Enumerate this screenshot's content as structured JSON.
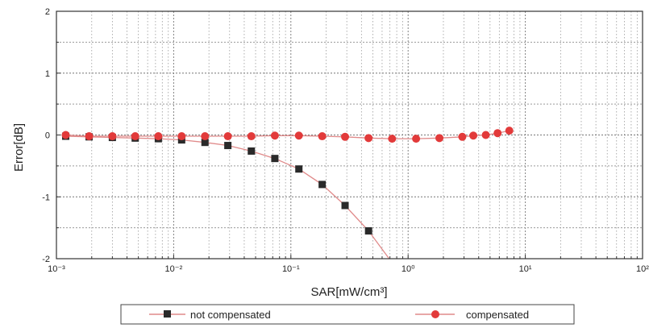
{
  "chart_data": {
    "type": "line",
    "xlabel": "SAR[mW/cm³]",
    "ylabel": "Error[dB]",
    "x_scale": "log",
    "xlim": [
      0.001,
      100
    ],
    "ylim": [
      -2,
      2
    ],
    "x_ticks": [
      0.001,
      0.01,
      0.1,
      1,
      10,
      100
    ],
    "x_tick_labels": [
      "10⁻³",
      "10⁻²",
      "10⁻¹",
      "10⁰",
      "10¹",
      "10²"
    ],
    "y_ticks": [
      -2,
      -1,
      0,
      1,
      2
    ],
    "y_tick_labels": [
      "-2",
      "-1",
      "0",
      "1",
      "2"
    ],
    "grid": true,
    "legend_position": "bottom",
    "colors": {
      "not_compensated": "#2a2a2a",
      "compensated": "#e23a3a"
    },
    "series": [
      {
        "name": "not compensated",
        "marker": "square",
        "x": [
          0.0012,
          0.0019,
          0.003,
          0.0047,
          0.0074,
          0.0117,
          0.0185,
          0.029,
          0.046,
          0.073,
          0.117,
          0.185,
          0.29,
          0.46
        ],
        "y": [
          -0.02,
          -0.03,
          -0.04,
          -0.05,
          -0.06,
          -0.08,
          -0.12,
          -0.17,
          -0.26,
          -0.38,
          -0.55,
          -0.8,
          -1.14,
          -1.55
        ]
      },
      {
        "name": "compensated",
        "marker": "circle",
        "x": [
          0.0012,
          0.0019,
          0.003,
          0.0047,
          0.0074,
          0.0117,
          0.0185,
          0.029,
          0.046,
          0.073,
          0.117,
          0.185,
          0.29,
          0.46,
          0.73,
          1.17,
          1.85,
          2.9,
          3.6,
          4.6,
          5.8,
          7.3
        ],
        "y": [
          0.0,
          -0.02,
          -0.02,
          -0.02,
          -0.02,
          -0.02,
          -0.02,
          -0.02,
          -0.02,
          -0.01,
          -0.01,
          -0.02,
          -0.03,
          -0.05,
          -0.06,
          -0.06,
          -0.05,
          -0.03,
          -0.01,
          0.0,
          0.03,
          0.07
        ]
      }
    ]
  }
}
